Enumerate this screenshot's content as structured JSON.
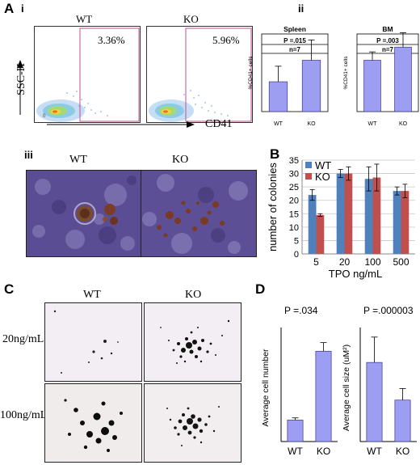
{
  "panels": {
    "A": "A",
    "A_i": "i",
    "A_ii": "ii",
    "A_iii": "iii",
    "B": "B",
    "C": "C",
    "D": "D"
  },
  "flow": {
    "y_axis_label": "SSC-H",
    "x_axis_label": "CD41",
    "plots": [
      {
        "genotype": "WT",
        "percent": "3.36%"
      },
      {
        "genotype": "KO",
        "percent": "5.96%"
      }
    ]
  },
  "micrographs_iii": {
    "left_label": "WT",
    "right_label": "KO"
  },
  "panel_C": {
    "col_labels": [
      "WT",
      "KO"
    ],
    "row_labels": [
      "20ng/mL",
      "100ng/mL"
    ]
  },
  "chart_data": [
    {
      "id": "A-ii-spleen",
      "type": "bar",
      "title": "Spleen",
      "ylabel": "%CD41+ cells",
      "categories": [
        "WT",
        "KO"
      ],
      "values": [
        2.5,
        4.3
      ],
      "errors": [
        1.3,
        1.7
      ],
      "ylim": [
        0,
        6.5
      ],
      "annotations": [
        "P =.015",
        "n=7"
      ],
      "color": "#9d9df2"
    },
    {
      "id": "A-ii-bm",
      "type": "bar",
      "title": "BM",
      "ylabel": "%CD41+ cells",
      "categories": [
        "WT",
        "KO"
      ],
      "values": [
        4.3,
        5.4
      ],
      "errors": [
        0.7,
        1.2
      ],
      "ylim": [
        0,
        6.5
      ],
      "annotations": [
        "P =.003",
        "n=7"
      ],
      "color": "#9d9df2"
    },
    {
      "id": "B",
      "type": "bar",
      "categories": [
        "5",
        "20",
        "100",
        "500"
      ],
      "xlabel": "TPO ng/mL",
      "ylabel": "number of colonies",
      "yticks": [
        0,
        5,
        10,
        15,
        20,
        25,
        30,
        35
      ],
      "ylim": [
        0,
        35
      ],
      "grid": true,
      "legend": "top-left",
      "series": [
        {
          "name": "WT",
          "values": [
            22,
            30,
            28,
            23.5
          ],
          "errors": [
            2,
            1.5,
            4.5,
            1.5
          ],
          "color": "#4f81bd"
        },
        {
          "name": "KO",
          "values": [
            14.5,
            30,
            28.5,
            23.5
          ],
          "errors": [
            0.5,
            2.5,
            5,
            2.5
          ],
          "color": "#c0504d"
        }
      ]
    },
    {
      "id": "D-cell-number",
      "type": "bar",
      "ylabel": "Average cell number",
      "categories": [
        "WT",
        "KO"
      ],
      "values": [
        10,
        42
      ],
      "errors": [
        1,
        4
      ],
      "ylim": [
        0,
        50
      ],
      "annotations": [
        "P =.034"
      ],
      "color": "#9d9df2"
    },
    {
      "id": "D-cell-size",
      "type": "bar",
      "ylabel": "Average cell size (uM²)",
      "categories": [
        "WT",
        "KO"
      ],
      "values": [
        10.3,
        5.4
      ],
      "errors": [
        3.3,
        1.5
      ],
      "ylim": [
        0,
        14
      ],
      "annotations": [
        "P =.000003"
      ],
      "color": "#9d9df2"
    }
  ]
}
